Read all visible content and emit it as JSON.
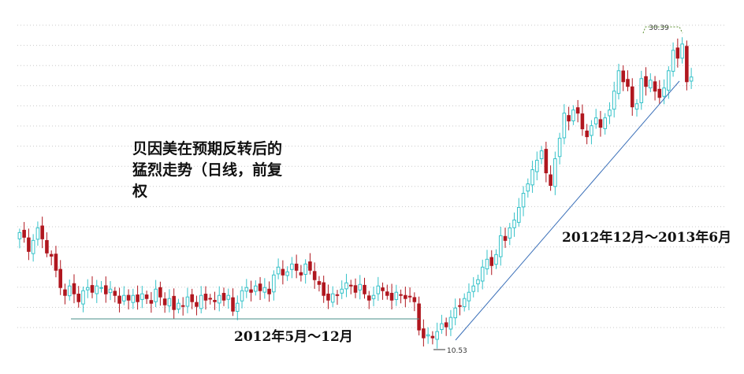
{
  "annotations": {
    "caption": "贝因美在预期反转后的猛烈走势（日线，前复权",
    "range_flat": "2012年5月～12月",
    "range_up": "2012年12月～2013年6月"
  },
  "chart_data": {
    "type": "candlestick",
    "title": "",
    "xlabel": "",
    "ylabel": "",
    "ylim": [
      9,
      32
    ],
    "grid": true,
    "colors": {
      "up": "#35c2c9",
      "down": "#b0171f",
      "trendline": "#3a6fb8",
      "grid": "#c8c8c8",
      "high_label": "#5a8f2e"
    },
    "high_label": "30.39",
    "low_label": "10.53",
    "high": 30.39,
    "low": 10.53,
    "closes": [
      17.6,
      17.3,
      16.4,
      17.1,
      17.9,
      17.2,
      16.3,
      16.1,
      15.2,
      14.1,
      13.6,
      14.2,
      13.7,
      13.2,
      13.9,
      14.1,
      13.8,
      14.2,
      14.1,
      13.7,
      14.0,
      13.6,
      13.1,
      13.6,
      13.3,
      13.6,
      13.2,
      13.7,
      13.4,
      13.1,
      14.0,
      13.5,
      13.0,
      13.4,
      12.7,
      13.1,
      12.9,
      13.5,
      13.2,
      12.9,
      13.6,
      13.3,
      13.4,
      13.2,
      13.6,
      13.3,
      13.6,
      12.6,
      13.1,
      13.9,
      14.1,
      13.8,
      14.2,
      13.9,
      14.1,
      13.7,
      14.9,
      15.4,
      14.9,
      15.1,
      15.6,
      15.2,
      14.9,
      15.6,
      15.2,
      14.6,
      14.3,
      13.6,
      13.3,
      13.7,
      13.6,
      14.0,
      14.4,
      14.2,
      13.8,
      14.3,
      13.7,
      13.3,
      13.6,
      14.2,
      13.9,
      13.6,
      13.3,
      13.8,
      13.6,
      13.4,
      13.5,
      13.2,
      11.4,
      10.9,
      11.1,
      10.9,
      11.3,
      11.8,
      11.6,
      12.2,
      12.8,
      12.9,
      13.4,
      13.8,
      14.2,
      14.6,
      15.4,
      15.9,
      15.5,
      16.2,
      17.4,
      17.1,
      17.9,
      18.4,
      19.2,
      20.1,
      20.7,
      21.6,
      22.2,
      22.8,
      21.4,
      20.6,
      22.3,
      23.6,
      25.2,
      24.7,
      25.4,
      25.2,
      24.2,
      23.7,
      24.4,
      24.9,
      24.3,
      24.9,
      25.4,
      26.6,
      27.9,
      27.2,
      26.9,
      25.6,
      25.8,
      27.4,
      26.9,
      27.3,
      26.6,
      26.2,
      26.8,
      27.9,
      29.2,
      28.7,
      29.6,
      27.2,
      27.5
    ]
  }
}
